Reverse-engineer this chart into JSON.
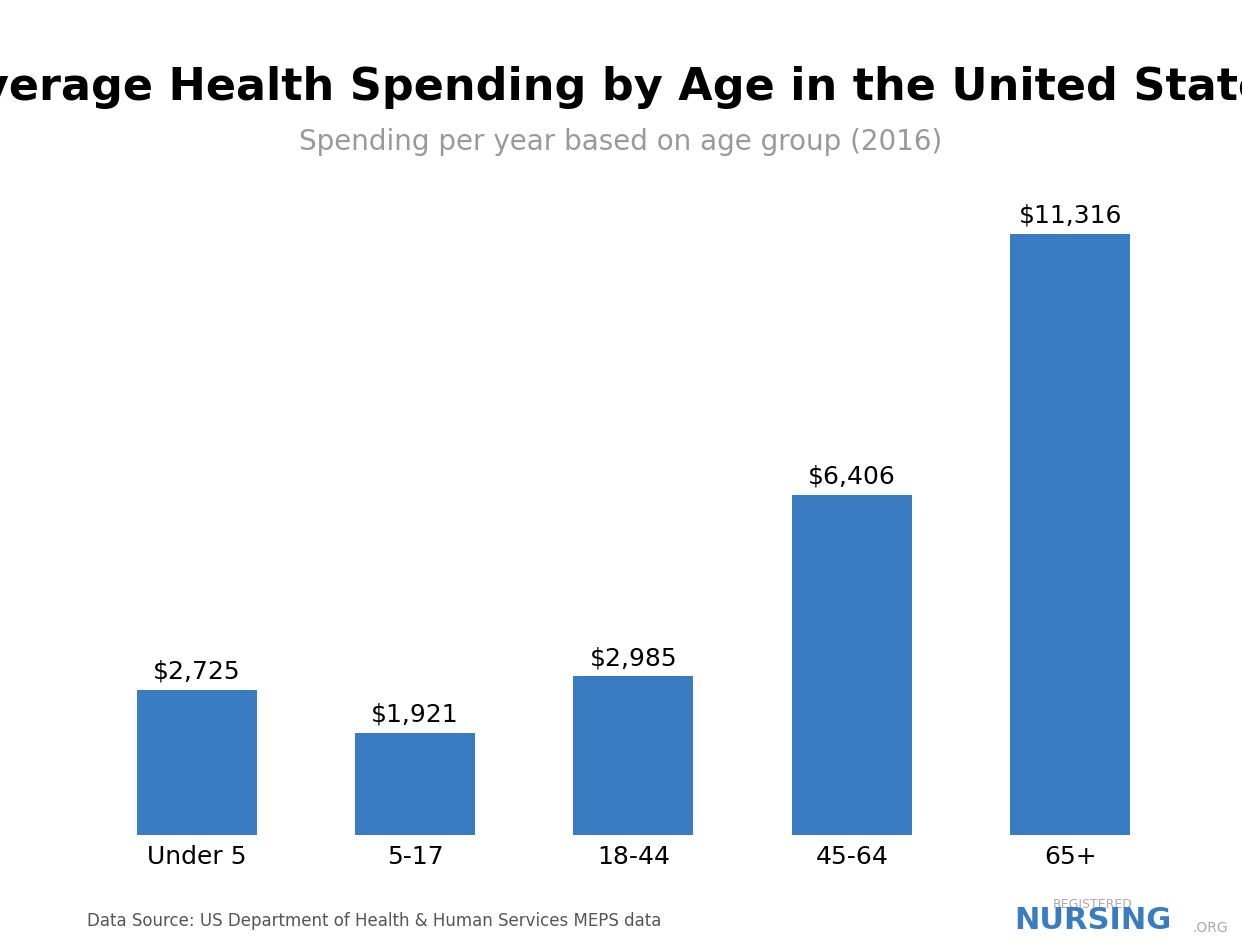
{
  "title": "Average Health Spending by Age in the United States",
  "subtitle": "Spending per year based on age group (2016)",
  "categories": [
    "Under 5",
    "5-17",
    "18-44",
    "45-64",
    "65+"
  ],
  "values": [
    2725,
    1921,
    2985,
    6406,
    11316
  ],
  "labels": [
    "$2,725",
    "$1,921",
    "$2,985",
    "$6,406",
    "$11,316"
  ],
  "bar_color": "#3a7cc1",
  "background_color": "#ffffff",
  "title_fontsize": 32,
  "subtitle_fontsize": 20,
  "label_fontsize": 18,
  "tick_fontsize": 18,
  "source_text": "Data Source: US Department of Health & Human Services MEPS data",
  "source_fontsize": 12,
  "ylim": [
    0,
    12500
  ]
}
